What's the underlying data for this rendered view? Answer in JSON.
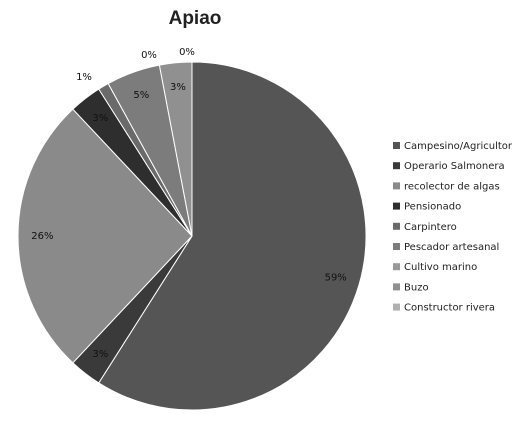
{
  "chart_data": {
    "type": "pie",
    "title": "Apiao",
    "start_angle_deg": 0,
    "direction": "clockwise",
    "legend_position": "right",
    "slices": [
      {
        "label": "Campesino/Agricultor",
        "value": 59,
        "display": "59%",
        "color": "#555555"
      },
      {
        "label": "Operario Salmonera",
        "value": 3,
        "display": "3%",
        "color": "#3a3a3a"
      },
      {
        "label": "recolector de algas",
        "value": 26,
        "display": "26%",
        "color": "#8a8a8a"
      },
      {
        "label": "Pensionado",
        "value": 3,
        "display": "3%",
        "color": "#2e2e2e"
      },
      {
        "label": "Carpintero",
        "value": 1,
        "display": "1%",
        "color": "#6a6a6a"
      },
      {
        "label": "Pescador artesanal",
        "value": 5,
        "display": "5%",
        "color": "#7c7c7c"
      },
      {
        "label": "Cultivo marino",
        "value": 0,
        "display": "0%",
        "color": "#999999"
      },
      {
        "label": "Buzo",
        "value": 3,
        "display": "3%",
        "color": "#909090"
      },
      {
        "label": "Constructor rivera",
        "value": 0,
        "display": "0%",
        "color": "#b0b0b0"
      }
    ]
  }
}
